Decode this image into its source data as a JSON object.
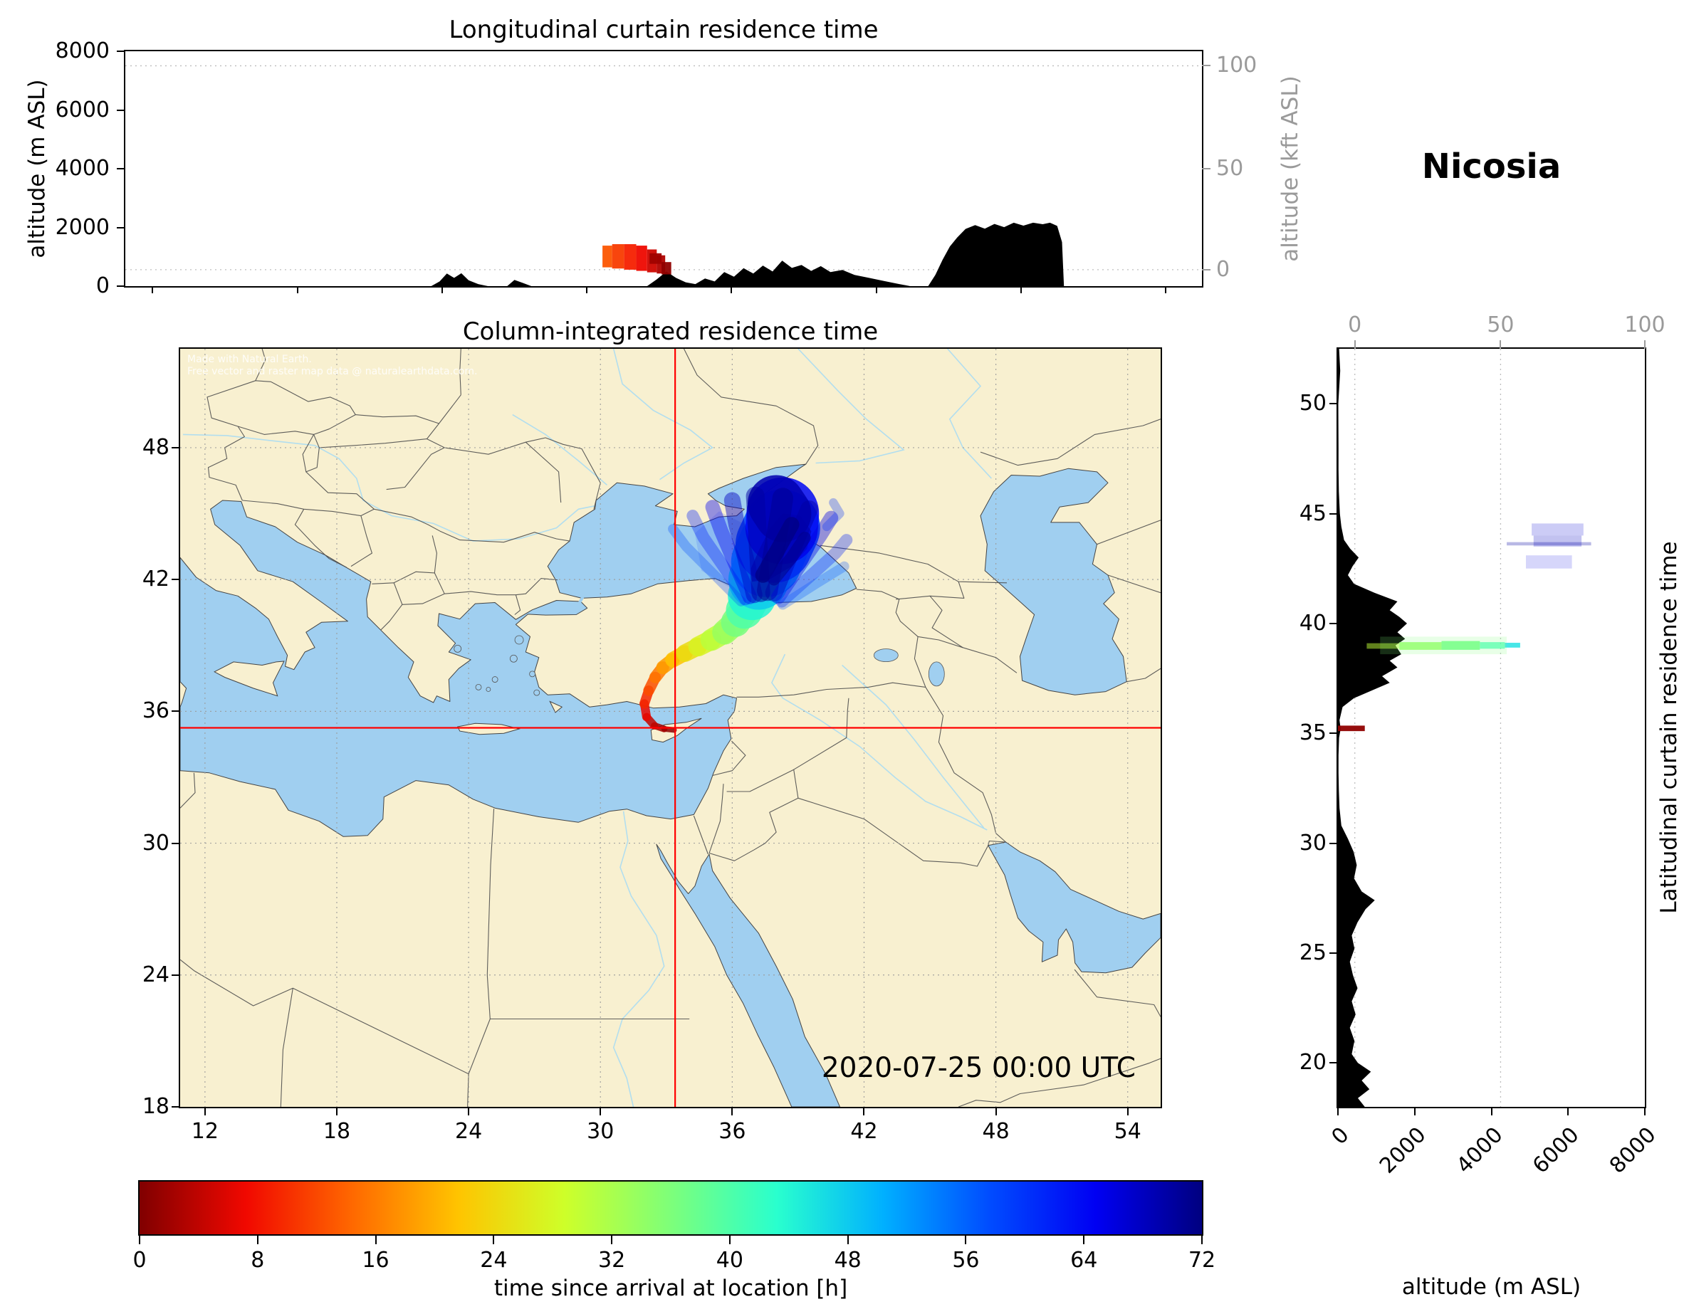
{
  "header": {
    "station": "Nicosia"
  },
  "top_panel": {
    "title": "Longitudinal curtain residence time",
    "ylabel_left": "altitude (m ASL)",
    "ylabel_right": "altitude (kft ASL)",
    "yticks_left": [
      0,
      2000,
      4000,
      6000,
      8000
    ],
    "yticks_right": [
      100,
      50,
      0
    ]
  },
  "map_panel": {
    "title": "Column-integrated residence time",
    "xticks": [
      12,
      18,
      24,
      30,
      36,
      42,
      48,
      54
    ],
    "yticks": [
      18,
      24,
      30,
      36,
      42,
      48
    ],
    "datetime": "2020-07-25 00:00 UTC",
    "attribution": [
      "Made with Natural Earth.",
      "Free vector and raster map data @ naturalearthdata.com."
    ]
  },
  "right_panel": {
    "ylabel_right": "Latitudinal curtain residence time",
    "xlabel": "altitude (m ASL)",
    "xticks_bottom": [
      0,
      2000,
      4000,
      6000,
      8000
    ],
    "xticks_top": [
      0,
      50,
      100
    ],
    "yticks": [
      20,
      25,
      30,
      35,
      40,
      45,
      50
    ]
  },
  "colorbar": {
    "label": "time since arrival at location [h]",
    "ticks": [
      0,
      8,
      16,
      24,
      32,
      40,
      48,
      56,
      64,
      72
    ],
    "min": 0,
    "max": 72,
    "stops": [
      {
        "p": 0.0,
        "c": "#800000"
      },
      {
        "p": 0.1,
        "c": "#f10800"
      },
      {
        "p": 0.2,
        "c": "#ff6800"
      },
      {
        "p": 0.3,
        "c": "#ffc400"
      },
      {
        "p": 0.4,
        "c": "#ceff29"
      },
      {
        "p": 0.5,
        "c": "#7dff7a"
      },
      {
        "p": 0.6,
        "c": "#29ffce"
      },
      {
        "p": 0.7,
        "c": "#00b0ff"
      },
      {
        "p": 0.8,
        "c": "#004cff"
      },
      {
        "p": 0.9,
        "c": "#0000f3"
      },
      {
        "p": 1.0,
        "c": "#000080"
      }
    ]
  },
  "chart_data": {
    "type": "residence-time-dispersion-figure",
    "receptor": {
      "name": "Nicosia",
      "lon": 33.4,
      "lat": 35.25
    },
    "datetime": "2020-07-25 00:00 UTC",
    "map_extent": {
      "lon_min": 10.87,
      "lon_max": 55.5,
      "lat_min": 18,
      "lat_max": 52.5
    },
    "altitude_range_m": [
      0,
      8000
    ],
    "time_range_h": [
      0,
      72
    ],
    "colors": {
      "land": "#f8f0d0",
      "sea": "#a0cff0",
      "terrain": "#000000",
      "crosshair": "#ff0000"
    },
    "top_terrain_profile_lon_alt": [
      [
        10.87,
        0
      ],
      [
        23.55,
        0
      ],
      [
        23.9,
        160
      ],
      [
        24.2,
        430
      ],
      [
        24.5,
        280
      ],
      [
        24.8,
        440
      ],
      [
        25.1,
        200
      ],
      [
        25.5,
        70
      ],
      [
        25.9,
        0
      ],
      [
        26.7,
        0
      ],
      [
        27.0,
        210
      ],
      [
        27.35,
        110
      ],
      [
        27.7,
        0
      ],
      [
        32.5,
        0
      ],
      [
        32.9,
        230
      ],
      [
        33.3,
        500
      ],
      [
        33.7,
        280
      ],
      [
        34.1,
        130
      ],
      [
        34.5,
        70
      ],
      [
        34.9,
        260
      ],
      [
        35.3,
        160
      ],
      [
        35.7,
        480
      ],
      [
        36.1,
        320
      ],
      [
        36.5,
        610
      ],
      [
        36.9,
        430
      ],
      [
        37.3,
        700
      ],
      [
        37.7,
        500
      ],
      [
        38.1,
        870
      ],
      [
        38.5,
        620
      ],
      [
        38.9,
        720
      ],
      [
        39.3,
        520
      ],
      [
        39.7,
        680
      ],
      [
        40.1,
        480
      ],
      [
        40.6,
        550
      ],
      [
        41.1,
        380
      ],
      [
        41.7,
        280
      ],
      [
        42.3,
        180
      ],
      [
        42.9,
        80
      ],
      [
        43.4,
        0
      ],
      [
        44.15,
        0
      ],
      [
        44.45,
        380
      ],
      [
        44.75,
        900
      ],
      [
        45.05,
        1350
      ],
      [
        45.35,
        1650
      ],
      [
        45.7,
        1950
      ],
      [
        46.1,
        2080
      ],
      [
        46.5,
        1960
      ],
      [
        46.9,
        2120
      ],
      [
        47.3,
        2010
      ],
      [
        47.7,
        2160
      ],
      [
        48.1,
        2060
      ],
      [
        48.5,
        2160
      ],
      [
        48.9,
        2110
      ],
      [
        49.2,
        2160
      ],
      [
        49.5,
        2050
      ],
      [
        49.7,
        1500
      ],
      [
        49.78,
        0
      ],
      [
        55.5,
        0
      ]
    ],
    "top_plume_boxes": [
      [
        30.65,
        31.05,
        640,
        1380,
        13
      ],
      [
        31.05,
        31.55,
        600,
        1430,
        11
      ],
      [
        31.55,
        32.05,
        560,
        1430,
        9
      ],
      [
        32.05,
        32.5,
        520,
        1380,
        7
      ],
      [
        32.5,
        32.9,
        470,
        1250,
        5
      ],
      [
        32.9,
        33.25,
        430,
        1050,
        3
      ],
      [
        33.1,
        33.5,
        400,
        820,
        1
      ],
      [
        32.6,
        33.1,
        760,
        1120,
        2
      ]
    ],
    "map_plume_core": [
      [
        33.35,
        35.15,
        0,
        0.22
      ],
      [
        32.9,
        35.2,
        1.5,
        0.28
      ],
      [
        32.45,
        35.35,
        3,
        0.33
      ],
      [
        32.1,
        35.75,
        5.5,
        0.38
      ],
      [
        32.0,
        36.35,
        8,
        0.42
      ],
      [
        32.2,
        36.95,
        11,
        0.48
      ],
      [
        32.5,
        37.55,
        14,
        0.52
      ],
      [
        32.85,
        38.0,
        17,
        0.58
      ],
      [
        33.3,
        38.35,
        20,
        0.66
      ],
      [
        33.85,
        38.65,
        23,
        0.75
      ],
      [
        34.45,
        38.95,
        26,
        0.85
      ],
      [
        35.05,
        39.25,
        29,
        0.95
      ],
      [
        35.65,
        39.6,
        32,
        1.05
      ],
      [
        36.15,
        40.05,
        35,
        1.2
      ],
      [
        36.55,
        40.6,
        38,
        1.45
      ],
      [
        36.9,
        41.25,
        42,
        1.9
      ],
      [
        37.2,
        42.0,
        46,
        2.5
      ],
      [
        37.55,
        42.8,
        50,
        3.0
      ],
      [
        37.9,
        43.6,
        55,
        3.4
      ],
      [
        38.25,
        44.35,
        61,
        3.6
      ],
      [
        38.3,
        45.0,
        67,
        3.0
      ],
      [
        38.0,
        45.45,
        71,
        2.2
      ]
    ],
    "map_plume_streaks": [
      {
        "t": 58,
        "w": 0.45,
        "o": 0.3,
        "p": [
          [
            36.4,
            41.0
          ],
          [
            35.1,
            42.3
          ],
          [
            33.9,
            43.5
          ],
          [
            33.3,
            44.3
          ]
        ]
      },
      {
        "t": 62,
        "w": 0.55,
        "o": 0.35,
        "p": [
          [
            36.6,
            41.1
          ],
          [
            35.6,
            42.6
          ],
          [
            34.7,
            43.9
          ],
          [
            34.2,
            44.9
          ]
        ]
      },
      {
        "t": 65,
        "w": 0.65,
        "o": 0.4,
        "p": [
          [
            36.8,
            41.2
          ],
          [
            36.1,
            42.8
          ],
          [
            35.5,
            44.2
          ],
          [
            35.1,
            45.3
          ]
        ]
      },
      {
        "t": 68,
        "w": 0.75,
        "o": 0.45,
        "p": [
          [
            37.0,
            41.3
          ],
          [
            36.6,
            43.0
          ],
          [
            36.2,
            44.5
          ],
          [
            36.0,
            45.6
          ]
        ]
      },
      {
        "t": 70,
        "w": 0.85,
        "o": 0.5,
        "p": [
          [
            37.3,
            41.4
          ],
          [
            37.2,
            43.2
          ],
          [
            37.1,
            44.9
          ],
          [
            37.05,
            45.8
          ]
        ]
      },
      {
        "t": 71,
        "w": 0.95,
        "o": 0.5,
        "p": [
          [
            37.6,
            41.5
          ],
          [
            37.9,
            43.3
          ],
          [
            38.2,
            45.0
          ],
          [
            38.3,
            45.7
          ]
        ]
      },
      {
        "t": 70,
        "w": 0.8,
        "o": 0.45,
        "p": [
          [
            37.9,
            41.4
          ],
          [
            38.6,
            43.1
          ],
          [
            39.2,
            44.5
          ],
          [
            39.5,
            45.2
          ]
        ]
      },
      {
        "t": 66,
        "w": 0.65,
        "o": 0.4,
        "p": [
          [
            38.1,
            41.2
          ],
          [
            39.1,
            42.7
          ],
          [
            40.0,
            44.0
          ],
          [
            40.5,
            44.8
          ]
        ]
      },
      {
        "t": 62,
        "w": 0.55,
        "o": 0.33,
        "p": [
          [
            38.25,
            41.0
          ],
          [
            39.6,
            42.2
          ],
          [
            40.7,
            43.2
          ],
          [
            41.2,
            43.8
          ]
        ]
      },
      {
        "t": 57,
        "w": 0.45,
        "o": 0.28,
        "p": [
          [
            38.3,
            40.85
          ],
          [
            39.8,
            41.8
          ],
          [
            41.1,
            42.6
          ]
        ]
      },
      {
        "t": 72,
        "w": 0.7,
        "o": 0.7,
        "p": [
          [
            37.4,
            42.2
          ],
          [
            38.1,
            43.4
          ],
          [
            38.7,
            44.5
          ]
        ]
      },
      {
        "t": 71,
        "w": 0.55,
        "o": 0.6,
        "p": [
          [
            37.9,
            42.0
          ],
          [
            38.7,
            43.0
          ],
          [
            39.3,
            43.9
          ]
        ]
      },
      {
        "t": 60,
        "w": 0.4,
        "o": 0.3,
        "p": [
          [
            40.3,
            44.4
          ],
          [
            40.9,
            45.0
          ],
          [
            40.6,
            45.5
          ]
        ]
      }
    ],
    "map_plume_fill": {
      "t": 69,
      "o": 0.55,
      "p": [
        [
          36.9,
          41.9
        ],
        [
          37.7,
          42.0
        ],
        [
          38.7,
          42.6
        ],
        [
          39.4,
          43.4
        ],
        [
          39.6,
          44.2
        ],
        [
          39.1,
          44.9
        ],
        [
          38.3,
          45.0
        ],
        [
          37.7,
          44.3
        ],
        [
          37.2,
          43.3
        ],
        [
          36.85,
          42.5
        ]
      ]
    },
    "map_plume_wash": {
      "t": 60,
      "o": 0.12,
      "p": [
        [
          34.6,
          42.4
        ],
        [
          36.3,
          41.4
        ],
        [
          37.6,
          42.3
        ],
        [
          37.0,
          44.3
        ],
        [
          35.4,
          45.1
        ],
        [
          34.3,
          44.1
        ]
      ]
    },
    "right_terrain_profile_lat_alt": [
      [
        18,
        700
      ],
      [
        18.4,
        520
      ],
      [
        18.8,
        820
      ],
      [
        19.2,
        620
      ],
      [
        19.6,
        860
      ],
      [
        20,
        520
      ],
      [
        20.4,
        360
      ],
      [
        21,
        430
      ],
      [
        21.6,
        310
      ],
      [
        22.2,
        460
      ],
      [
        22.8,
        360
      ],
      [
        23.4,
        510
      ],
      [
        24,
        390
      ],
      [
        24.6,
        310
      ],
      [
        25.2,
        430
      ],
      [
        25.8,
        360
      ],
      [
        26.4,
        510
      ],
      [
        27,
        720
      ],
      [
        27.4,
        960
      ],
      [
        27.8,
        620
      ],
      [
        28.4,
        420
      ],
      [
        29,
        490
      ],
      [
        29.6,
        410
      ],
      [
        30.2,
        260
      ],
      [
        30.8,
        90
      ],
      [
        31.6,
        40
      ],
      [
        32.4,
        25
      ],
      [
        33.2,
        15
      ],
      [
        34,
        15
      ],
      [
        34.8,
        30
      ],
      [
        35.2,
        70
      ],
      [
        35.6,
        40
      ],
      [
        36.2,
        120
      ],
      [
        36.6,
        420
      ],
      [
        37,
        950
      ],
      [
        37.3,
        1350
      ],
      [
        37.6,
        1150
      ],
      [
        38,
        1550
      ],
      [
        38.3,
        1350
      ],
      [
        38.6,
        1650
      ],
      [
        39,
        1500
      ],
      [
        39.3,
        1750
      ],
      [
        39.6,
        1550
      ],
      [
        40,
        1800
      ],
      [
        40.3,
        1600
      ],
      [
        40.6,
        1350
      ],
      [
        41,
        1550
      ],
      [
        41.4,
        950
      ],
      [
        41.8,
        420
      ],
      [
        42.2,
        260
      ],
      [
        42.6,
        380
      ],
      [
        43,
        540
      ],
      [
        43.4,
        320
      ],
      [
        43.8,
        160
      ],
      [
        44.4,
        90
      ],
      [
        45,
        50
      ],
      [
        46,
        25
      ],
      [
        47,
        15
      ],
      [
        48,
        15
      ],
      [
        50,
        10
      ],
      [
        51.5,
        60
      ],
      [
        52.5,
        30
      ]
    ],
    "right_plume_marks": [
      [
        35.1,
        35.35,
        0,
        700,
        1,
        0.95
      ],
      [
        38.85,
        39.1,
        750,
        1600,
        30,
        0.5
      ],
      [
        38.8,
        39.15,
        1600,
        2700,
        34,
        0.8
      ],
      [
        38.8,
        39.2,
        2700,
        3700,
        37,
        0.85
      ],
      [
        38.85,
        39.15,
        3700,
        4350,
        41,
        0.7
      ],
      [
        38.9,
        39.12,
        4350,
        4750,
        46,
        0.8
      ],
      [
        38.6,
        39.4,
        1100,
        4400,
        36,
        0.18
      ],
      [
        42.5,
        43.1,
        4900,
        6100,
        66,
        0.16
      ],
      [
        43.5,
        44.0,
        5100,
        6350,
        68,
        0.24
      ],
      [
        44.0,
        44.55,
        5050,
        6400,
        67,
        0.2
      ],
      [
        43.55,
        43.7,
        4400,
        6600,
        70,
        0.28
      ]
    ]
  }
}
